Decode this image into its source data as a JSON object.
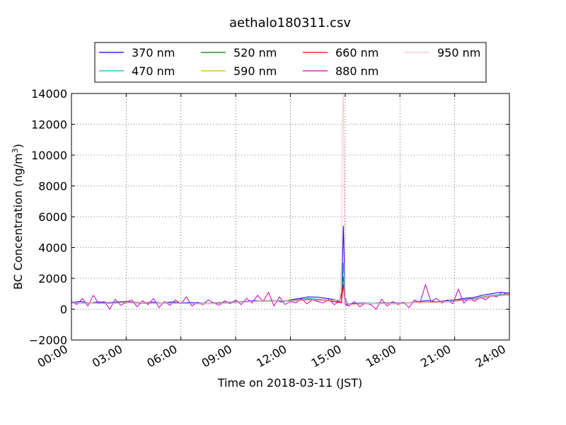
{
  "chart_data": {
    "type": "line",
    "title": "aethalo180311.csv",
    "xlabel": "Time on 2018-03-11 (JST)",
    "ylabel_main": "BC Concentration (ng/m",
    "ylabel_sup": "3",
    "ylabel_close": ")",
    "xlim_hours": [
      0,
      24
    ],
    "ylim": [
      -2000,
      14000
    ],
    "grid": true,
    "legend_position": "top, above plot",
    "x_ticks": [
      {
        "hour": 0,
        "label": "00:00"
      },
      {
        "hour": 3,
        "label": "03:00"
      },
      {
        "hour": 6,
        "label": "06:00"
      },
      {
        "hour": 9,
        "label": "09:00"
      },
      {
        "hour": 12,
        "label": "12:00"
      },
      {
        "hour": 15,
        "label": "15:00"
      },
      {
        "hour": 18,
        "label": "18:00"
      },
      {
        "hour": 21,
        "label": "21:00"
      },
      {
        "hour": 24,
        "label": "24:00"
      }
    ],
    "y_ticks": [
      {
        "value": -2000,
        "label": "−2000"
      },
      {
        "value": 0,
        "label": "0"
      },
      {
        "value": 2000,
        "label": "2000"
      },
      {
        "value": 4000,
        "label": "4000"
      },
      {
        "value": 6000,
        "label": "6000"
      },
      {
        "value": 8000,
        "label": "8000"
      },
      {
        "value": 10000,
        "label": "10000"
      },
      {
        "value": 12000,
        "label": "12000"
      },
      {
        "value": 14000,
        "label": "14000"
      }
    ],
    "series": [
      {
        "name": "370 nm",
        "color": "#0000ff",
        "x": [
          0,
          0.5,
          1,
          1.5,
          2,
          2.5,
          3,
          3.5,
          4,
          4.5,
          5,
          5.5,
          6,
          6.5,
          7,
          7.5,
          8,
          8.5,
          9,
          9.5,
          10,
          10.5,
          11,
          11.5,
          12,
          12.5,
          13,
          13.5,
          14,
          14.5,
          14.8,
          14.9,
          15.0,
          15.1,
          15.3,
          15.5,
          16,
          16.5,
          17,
          17.5,
          18,
          18.5,
          19,
          19.5,
          20,
          20.5,
          21,
          21.5,
          22,
          22.5,
          23,
          23.5,
          24
        ],
        "y": [
          450,
          500,
          400,
          480,
          420,
          470,
          500,
          450,
          420,
          460,
          400,
          480,
          420,
          430,
          400,
          380,
          420,
          450,
          480,
          500,
          550,
          520,
          580,
          480,
          600,
          700,
          800,
          780,
          700,
          600,
          400,
          5400,
          800,
          300,
          350,
          380,
          400,
          380,
          420,
          400,
          400,
          420,
          500,
          550,
          480,
          550,
          600,
          700,
          750,
          900,
          1000,
          1100,
          1050
        ]
      },
      {
        "name": "470 nm",
        "color": "#00bfbf",
        "x": [
          0,
          1,
          2,
          3,
          4,
          5,
          6,
          7,
          8,
          9,
          10,
          11,
          12,
          13,
          14,
          14.8,
          14.9,
          15.0,
          15.2,
          16,
          17,
          18,
          19,
          20,
          21,
          22,
          23,
          24
        ],
        "y": [
          430,
          420,
          400,
          460,
          410,
          420,
          410,
          380,
          400,
          460,
          520,
          560,
          560,
          700,
          600,
          450,
          3000,
          600,
          320,
          380,
          400,
          380,
          480,
          460,
          580,
          700,
          900,
          1000
        ]
      },
      {
        "name": "520 nm",
        "color": "#008000",
        "x": [
          0,
          1,
          2,
          3,
          4,
          5,
          6,
          7,
          8,
          9,
          10,
          11,
          12,
          13,
          14,
          14.8,
          14.9,
          15.0,
          15.2,
          16,
          17,
          18,
          19,
          20,
          21,
          22,
          23,
          24
        ],
        "y": [
          420,
          410,
          390,
          450,
          400,
          410,
          400,
          370,
          390,
          450,
          510,
          550,
          550,
          650,
          600,
          440,
          2100,
          550,
          310,
          370,
          390,
          370,
          470,
          450,
          560,
          680,
          880,
          980
        ]
      },
      {
        "name": "590 nm",
        "color": "#bfbf00",
        "x": [
          0,
          1,
          2,
          3,
          4,
          5,
          6,
          7,
          8,
          9,
          10,
          11,
          12,
          13,
          14,
          14.8,
          14.9,
          15.0,
          15.2,
          16,
          17,
          18,
          19,
          20,
          21,
          22,
          23,
          24
        ],
        "y": [
          410,
          400,
          380,
          440,
          390,
          400,
          390,
          360,
          380,
          440,
          500,
          540,
          540,
          620,
          580,
          430,
          1800,
          520,
          300,
          360,
          380,
          360,
          460,
          440,
          540,
          660,
          860,
          960
        ]
      },
      {
        "name": "660 nm",
        "color": "#ff0000",
        "x": [
          0,
          1,
          2,
          3,
          4,
          5,
          6,
          7,
          8,
          9,
          10,
          11,
          12,
          13,
          14,
          14.8,
          14.9,
          15.0,
          15.2,
          16,
          17,
          18,
          19,
          20,
          21,
          22,
          23,
          24
        ],
        "y": [
          400,
          390,
          370,
          430,
          380,
          390,
          380,
          350,
          370,
          430,
          490,
          530,
          520,
          600,
          560,
          420,
          1600,
          500,
          290,
          350,
          370,
          350,
          450,
          430,
          520,
          640,
          840,
          940
        ]
      },
      {
        "name": "880 nm",
        "color": "#bf00bf",
        "x": [
          0,
          0.3,
          0.6,
          0.9,
          1.2,
          1.5,
          1.8,
          2.1,
          2.4,
          2.7,
          3.0,
          3.3,
          3.6,
          3.9,
          4.2,
          4.5,
          4.8,
          5.1,
          5.4,
          5.7,
          6.0,
          6.3,
          6.6,
          6.9,
          7.2,
          7.5,
          7.8,
          8.1,
          8.4,
          8.7,
          9.0,
          9.3,
          9.6,
          9.9,
          10.2,
          10.5,
          10.8,
          11.1,
          11.4,
          11.7,
          12.0,
          12.3,
          12.6,
          12.9,
          13.2,
          13.5,
          13.8,
          14.1,
          14.4,
          14.7,
          14.9,
          15.0,
          15.2,
          15.5,
          15.8,
          16.1,
          16.4,
          16.7,
          17.0,
          17.3,
          17.6,
          17.9,
          18.2,
          18.5,
          18.8,
          19.1,
          19.4,
          19.7,
          20.0,
          20.3,
          20.6,
          20.9,
          21.2,
          21.5,
          21.8,
          22.1,
          22.4,
          22.7,
          23.0,
          23.3,
          23.6,
          24.0
        ],
        "y": [
          500,
          300,
          700,
          200,
          900,
          350,
          500,
          0,
          650,
          250,
          450,
          600,
          150,
          550,
          300,
          700,
          100,
          500,
          250,
          600,
          350,
          800,
          200,
          450,
          300,
          600,
          400,
          250,
          550,
          350,
          600,
          300,
          700,
          400,
          900,
          500,
          1100,
          200,
          800,
          300,
          500,
          400,
          700,
          350,
          600,
          500,
          400,
          650,
          300,
          500,
          1600,
          300,
          200,
          500,
          150,
          400,
          300,
          0,
          650,
          200,
          500,
          300,
          450,
          100,
          600,
          400,
          1600,
          500,
          700,
          400,
          600,
          350,
          1300,
          400,
          700,
          500,
          800,
          600,
          900,
          800,
          1100,
          900
        ]
      },
      {
        "name": "950 nm",
        "color": "#ffc0cb",
        "x": [
          0,
          1,
          2,
          3,
          4,
          5,
          6,
          7,
          8,
          9,
          10,
          11,
          12,
          13,
          14,
          14.7,
          14.8,
          14.85,
          14.9,
          14.95,
          15.0,
          15.2,
          16,
          17,
          18,
          19,
          20,
          21,
          22,
          23,
          24
        ],
        "y": [
          420,
          400,
          380,
          450,
          400,
          400,
          390,
          360,
          380,
          440,
          500,
          540,
          530,
          620,
          580,
          600,
          3000,
          12500,
          14000,
          8000,
          500,
          300,
          360,
          380,
          360,
          460,
          440,
          540,
          660,
          860,
          960
        ]
      }
    ]
  }
}
